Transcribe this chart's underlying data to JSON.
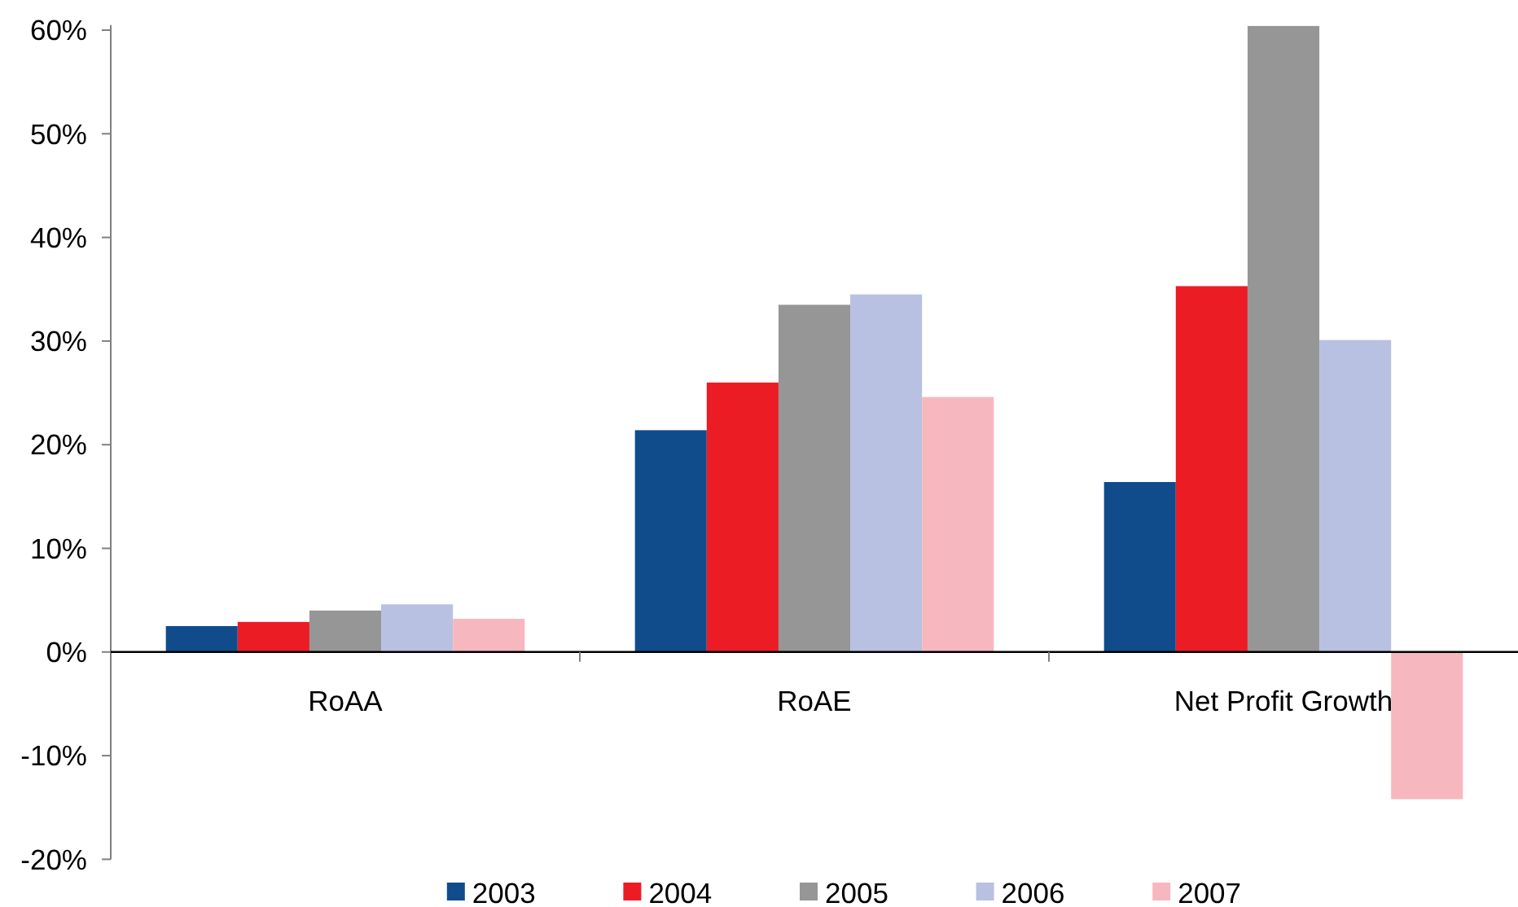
{
  "chart_data": {
    "type": "bar",
    "categories": [
      "RoAA",
      "RoAE",
      "Net Profit Growth"
    ],
    "series": [
      {
        "name": "2003",
        "color": "#104c8c",
        "values": [
          2.5,
          21.4,
          16.4
        ]
      },
      {
        "name": "2004",
        "color": "#ec1c24",
        "values": [
          2.9,
          26.0,
          35.3
        ]
      },
      {
        "name": "2005",
        "color": "#969696",
        "values": [
          4.0,
          33.5,
          60.4
        ]
      },
      {
        "name": "2006",
        "color": "#b8c1e1",
        "values": [
          4.6,
          34.5,
          30.1
        ]
      },
      {
        "name": "2007",
        "color": "#f7b7bf",
        "values": [
          3.2,
          24.6,
          -14.2
        ]
      }
    ],
    "ylim": [
      -20,
      60.5
    ],
    "yticks": [
      {
        "value": -20,
        "label": "-20%"
      },
      {
        "value": -10,
        "label": "-10%"
      },
      {
        "value": 0,
        "label": "0%"
      },
      {
        "value": 10,
        "label": "10%"
      },
      {
        "value": 20,
        "label": "20%"
      },
      {
        "value": 30,
        "label": "30%"
      },
      {
        "value": 40,
        "label": "40%"
      },
      {
        "value": 50,
        "label": "50%"
      },
      {
        "value": 60,
        "label": "60%"
      }
    ],
    "legend": "bottom"
  }
}
